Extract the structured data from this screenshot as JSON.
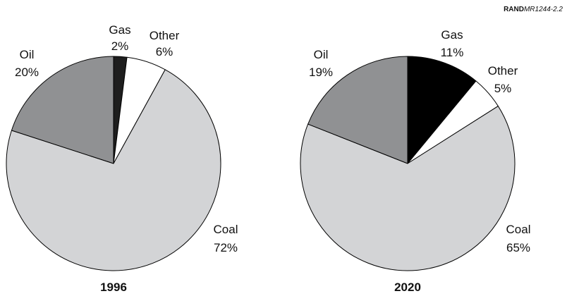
{
  "figure_id": {
    "org": "RAND",
    "code": "MR1244-2.2"
  },
  "chart_data": [
    {
      "type": "pie",
      "title": "1996",
      "slices": [
        {
          "label": "Gas",
          "value_label": "2%",
          "value": 2,
          "color": "#1e1e1e"
        },
        {
          "label": "Other",
          "value_label": "6%",
          "value": 6,
          "color": "#ffffff"
        },
        {
          "label": "Coal",
          "value_label": "72%",
          "value": 72,
          "color": "#d3d4d6"
        },
        {
          "label": "Oil",
          "value_label": "20%",
          "value": 20,
          "color": "#909193"
        }
      ]
    },
    {
      "type": "pie",
      "title": "2020",
      "slices": [
        {
          "label": "Gas",
          "value_label": "11%",
          "value": 11,
          "color": "#000000"
        },
        {
          "label": "Other",
          "value_label": "5%",
          "value": 5,
          "color": "#ffffff"
        },
        {
          "label": "Coal",
          "value_label": "65%",
          "value": 65,
          "color": "#d3d4d6"
        },
        {
          "label": "Oil",
          "value_label": "19%",
          "value": 19,
          "color": "#909193"
        }
      ]
    }
  ]
}
